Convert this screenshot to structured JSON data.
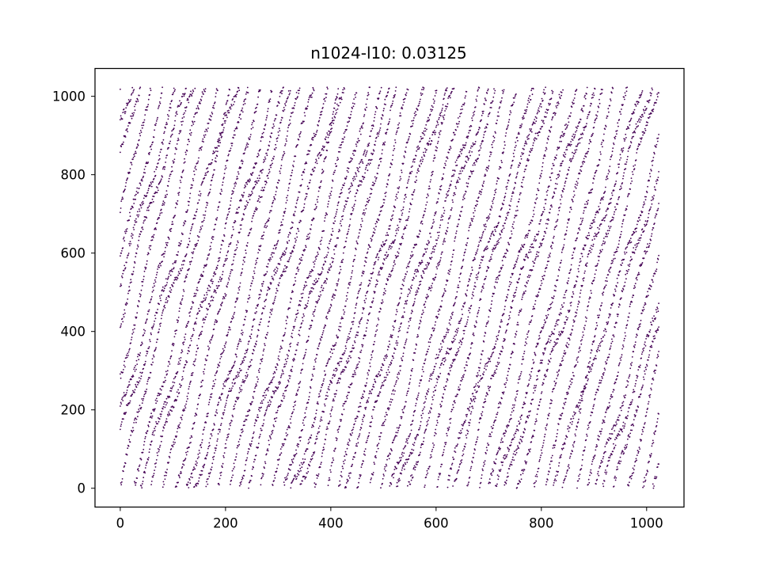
{
  "chart_data": {
    "type": "scatter",
    "title": "n1024-l10: 0.03125",
    "xlabel": "",
    "ylabel": "",
    "xlim": [
      -48,
      1071
    ],
    "ylim": [
      -48,
      1071
    ],
    "xticks": [
      0,
      200,
      400,
      600,
      800,
      1000
    ],
    "yticks": [
      0,
      200,
      400,
      600,
      800,
      1000
    ],
    "xtick_labels": [
      "0",
      "200",
      "400",
      "600",
      "800",
      "1000"
    ],
    "ytick_labels": [
      "0",
      "200",
      "400",
      "600",
      "800",
      "1000"
    ],
    "grid": false,
    "legend": false,
    "marker_color": "#440154",
    "series": [
      {
        "point_count": 10240,
        "x_range": [
          0,
          1023
        ],
        "y_range": [
          0,
          1023
        ],
        "layers": 10,
        "points_per_layer": 1024,
        "sampling_rate": 0.03125
      }
    ]
  }
}
